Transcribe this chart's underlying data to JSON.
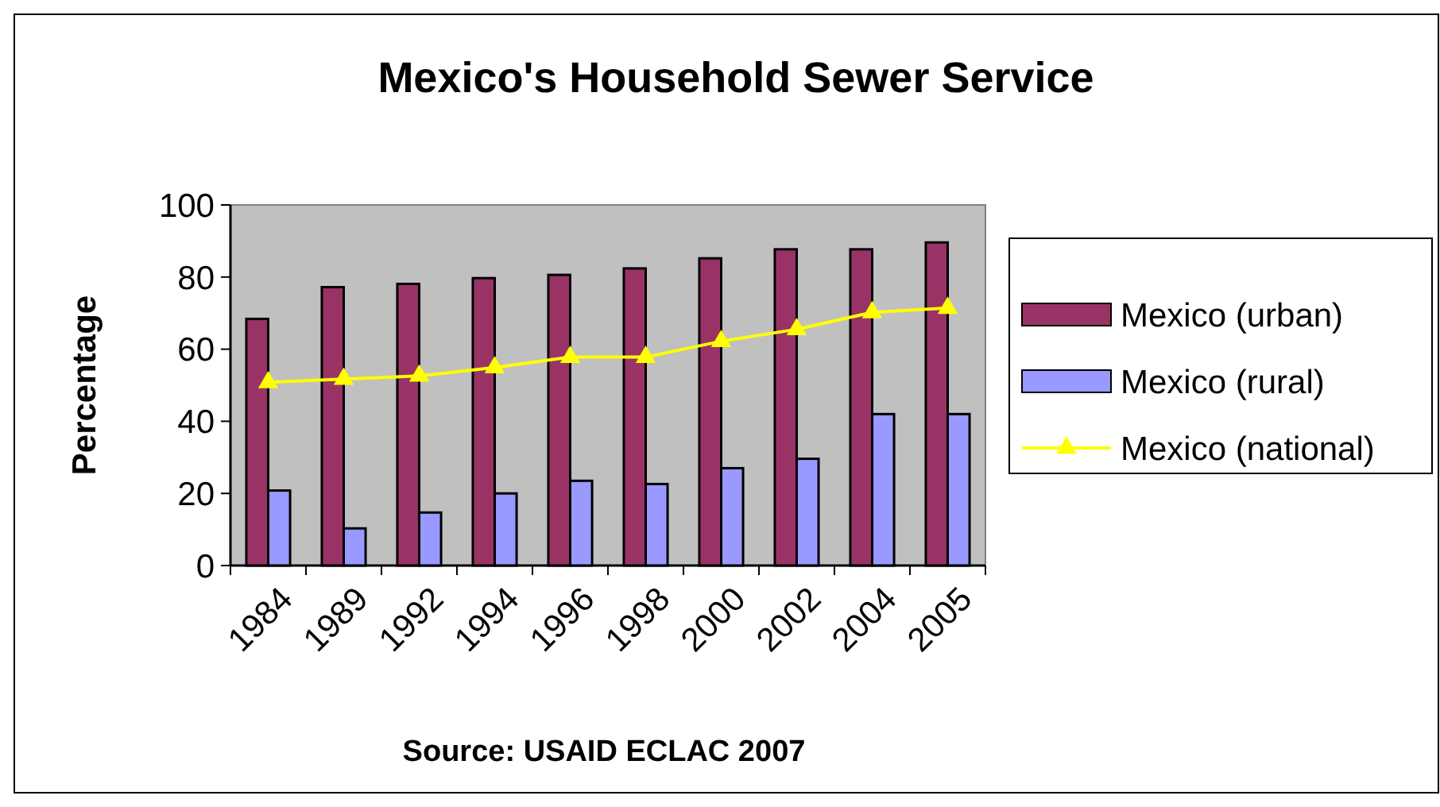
{
  "chart_data": {
    "type": "bar",
    "title": "Mexico's Household Sewer Service",
    "ylabel": "Percentage",
    "annotations": [
      "Source: USAID ECLAC 2007"
    ],
    "categories": [
      "1984",
      "1989",
      "1992",
      "1994",
      "1996",
      "1998",
      "2000",
      "2002",
      "2004",
      "2005"
    ],
    "series": [
      {
        "name": "Mexico (urban)",
        "color": "#993366",
        "values": [
          68.4,
          77.2,
          78.1,
          79.7,
          80.6,
          82.4,
          85.2,
          87.7,
          87.7,
          89.6
        ]
      },
      {
        "name": "Mexico (rural)",
        "color": "#9999ff",
        "values": [
          20.8,
          10.3,
          14.7,
          20,
          23.5,
          22.6,
          27,
          29.6,
          42,
          42
        ]
      },
      {
        "name": "Mexico (national)",
        "type": "line",
        "color": "#ffff00",
        "marker": "triangle",
        "values": [
          50.8,
          51.7,
          52.6,
          54.9,
          57.8,
          57.8,
          62.2,
          65.5,
          70.2,
          71.4
        ]
      }
    ],
    "ylim": [
      0,
      100
    ],
    "yticks": [
      0,
      20,
      40,
      60,
      80,
      100
    ],
    "grid": false,
    "legend": "right"
  }
}
